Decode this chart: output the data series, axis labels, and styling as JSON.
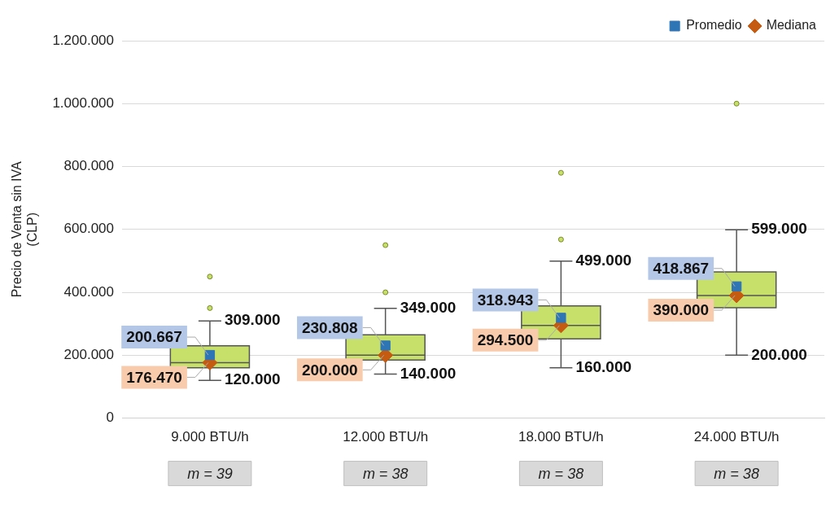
{
  "chart_data": {
    "type": "box",
    "ylabel": "Precio de Venta sin IVA\n(CLP)",
    "categories": [
      "9.000 BTU/h",
      "12.000 BTU/h",
      "18.000 BTU/h",
      "24.000 BTU/h"
    ],
    "ylim": [
      0,
      1200000
    ],
    "yticks": [
      0,
      {
        "value": 200000,
        "label": "200.000"
      },
      {
        "value": 400000,
        "label": "400.000"
      },
      {
        "value": 600000,
        "label": "600.000"
      },
      {
        "value": 800000,
        "label": "800.000"
      },
      {
        "value": 1000000,
        "label": "1.000.000"
      },
      {
        "value": 1200000,
        "label": "1.200.000"
      }
    ],
    "grid": "y",
    "legend": "top right",
    "series": [
      {
        "type": "box",
        "color": "#c6e06a",
        "boxes": [
          {
            "low": 120000,
            "q1": 160000,
            "median": 176470,
            "q3": 230000,
            "high": 309000,
            "outliers": [
              350000,
              450000
            ]
          },
          {
            "low": 140000,
            "q1": 185000,
            "median": 200000,
            "q3": 265000,
            "high": 349000,
            "outliers": [
              400000,
              550000
            ]
          },
          {
            "low": 160000,
            "q1": 252000,
            "median": 294500,
            "q3": 357000,
            "high": 499000,
            "outliers": [
              568000,
              780000
            ]
          },
          {
            "low": 200000,
            "q1": 351000,
            "median": 390000,
            "q3": 465000,
            "high": 599000,
            "outliers": [
              1000000
            ]
          }
        ]
      },
      {
        "type": "scatter",
        "name": "Promedio",
        "color": "#2e75b6",
        "marker": "square",
        "values": [
          200667,
          230808,
          318943,
          418867
        ],
        "value_labels": [
          "200.667",
          "230.808",
          "318.943",
          "418.867"
        ]
      },
      {
        "type": "scatter",
        "name": "Mediana",
        "color": "#c55a11",
        "marker": "diamond",
        "values": [
          176470,
          200000,
          294500,
          390000
        ],
        "value_labels": [
          "176.470",
          "200.000",
          "294.500",
          "390.000"
        ]
      }
    ],
    "annotations": [
      "m = 39",
      "m = 38",
      "m = 38",
      "m = 38",
      {
        "text": "309.000",
        "x": "9.000 BTU/h",
        "y": 309000
      },
      {
        "text": "120.000",
        "x": "9.000 BTU/h",
        "y": 120000
      },
      {
        "text": "349.000",
        "x": "12.000 BTU/h",
        "y": 349000
      },
      {
        "text": "140.000",
        "x": "12.000 BTU/h",
        "y": 140000
      },
      {
        "text": "499.000",
        "x": "18.000 BTU/h",
        "y": 499000
      },
      {
        "text": "160.000",
        "x": "18.000 BTU/h",
        "y": 160000
      },
      {
        "text": "599.000",
        "x": "24.000 BTU/h",
        "y": 599000
      },
      {
        "text": "200.000",
        "x": "24.000 BTU/h",
        "y": 200000
      }
    ]
  }
}
